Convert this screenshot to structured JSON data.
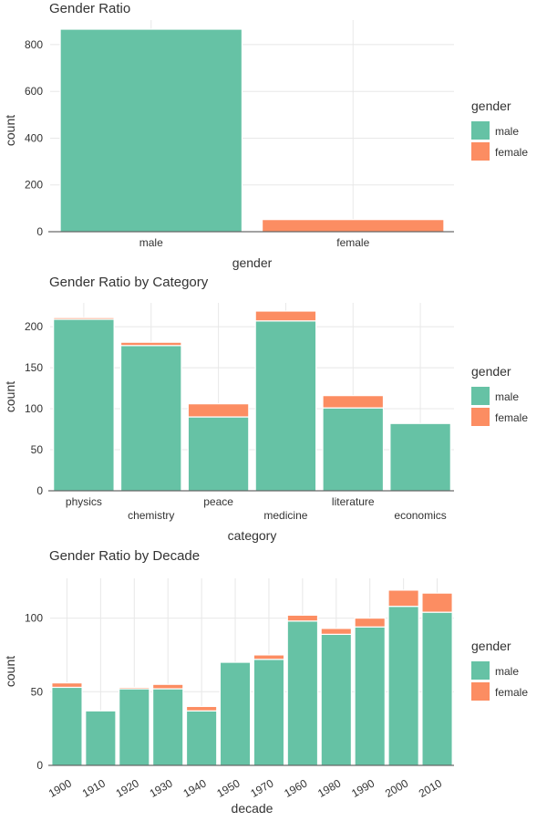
{
  "chart_data": [
    {
      "type": "bar",
      "title": "Gender Ratio",
      "xlabel": "gender",
      "ylabel": "count",
      "categories": [
        "male",
        "female"
      ],
      "yticks": [
        0,
        200,
        400,
        600,
        800
      ],
      "ylim": [
        0,
        905
      ],
      "stacked": true,
      "series": [
        {
          "name": "male",
          "values": [
            866,
            0
          ]
        },
        {
          "name": "female",
          "values": [
            0,
            52
          ]
        }
      ],
      "legend": {
        "title": "gender",
        "position": "right",
        "items": [
          "male",
          "female"
        ]
      },
      "tick_style": "plain"
    },
    {
      "type": "bar",
      "title": "Gender Ratio by Category",
      "xlabel": "category",
      "ylabel": "count",
      "categories": [
        "physics",
        "chemistry",
        "peace",
        "medicine",
        "literature",
        "economics"
      ],
      "yticks": [
        0,
        50,
        100,
        150,
        200
      ],
      "ylim": [
        0,
        229
      ],
      "stacked": true,
      "series": [
        {
          "name": "male",
          "values": [
            209,
            177,
            90,
            207,
            101,
            82
          ]
        },
        {
          "name": "female",
          "values": [
            2,
            4,
            16,
            12,
            15,
            0
          ]
        }
      ],
      "legend": {
        "title": "gender",
        "position": "right",
        "items": [
          "male",
          "female"
        ]
      },
      "tick_style": "staggered"
    },
    {
      "type": "bar",
      "title": "Gender Ratio by Decade",
      "xlabel": "decade",
      "ylabel": "count",
      "categories": [
        "1900",
        "1910",
        "1920",
        "1930",
        "1940",
        "1950",
        "1970",
        "1960",
        "1980",
        "1990",
        "2000",
        "2010"
      ],
      "yticks": [
        0,
        50,
        100
      ],
      "ylim": [
        0,
        127
      ],
      "stacked": true,
      "series": [
        {
          "name": "male",
          "values": [
            53,
            37,
            52,
            52,
            37,
            70,
            72,
            98,
            89,
            94,
            108,
            104
          ]
        },
        {
          "name": "female",
          "values": [
            3,
            0,
            1,
            3,
            3,
            0,
            3,
            4,
            4,
            6,
            11,
            13
          ]
        }
      ],
      "legend": {
        "title": "gender",
        "position": "right",
        "items": [
          "male",
          "female"
        ]
      },
      "tick_style": "rotated"
    }
  ],
  "colors": {
    "male": "#66c2a5",
    "female": "#fc8d62"
  }
}
